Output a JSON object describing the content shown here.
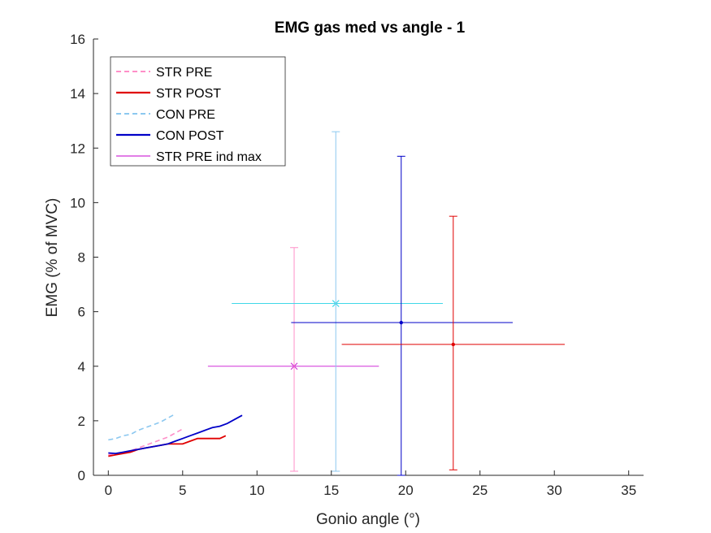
{
  "chart_data": {
    "type": "line",
    "title": "EMG gas med vs angle - 1",
    "xlabel": "Gonio angle (°)",
    "ylabel": "EMG (% of MVC)",
    "xlim": [
      -1,
      36
    ],
    "ylim": [
      0,
      16
    ],
    "xticks": [
      "0",
      "5",
      "10",
      "15",
      "20",
      "25",
      "30",
      "35"
    ],
    "yticks": [
      "0",
      "2",
      "4",
      "6",
      "8",
      "10",
      "12",
      "14",
      "16"
    ],
    "xtick_values": [
      0,
      5,
      10,
      15,
      20,
      25,
      30,
      35
    ],
    "ytick_values": [
      0,
      2,
      4,
      6,
      8,
      10,
      12,
      14,
      16
    ],
    "grid": false,
    "legend_position": "top-left",
    "legend": [
      "STR PRE",
      "STR POST",
      "CON PRE",
      "CON POST",
      "STR PRE ind max"
    ],
    "series": [
      {
        "name": "STR PRE",
        "style": "dashed",
        "color": "#ff8fc8",
        "x": [
          0,
          0.5,
          1,
          1.5,
          2,
          2.5,
          3,
          3.5,
          4,
          4.5,
          5
        ],
        "y": [
          0.75,
          0.8,
          0.85,
          0.9,
          1.0,
          1.1,
          1.2,
          1.3,
          1.4,
          1.55,
          1.7
        ]
      },
      {
        "name": "STR POST",
        "style": "solid",
        "color": "#e00000",
        "x": [
          0,
          0.5,
          1,
          1.5,
          2,
          2.5,
          3,
          3.5,
          4,
          4.5,
          5,
          5.5,
          6,
          6.5,
          7,
          7.5,
          7.9
        ],
        "y": [
          0.7,
          0.75,
          0.8,
          0.85,
          0.95,
          1.0,
          1.05,
          1.1,
          1.15,
          1.15,
          1.15,
          1.25,
          1.35,
          1.35,
          1.35,
          1.35,
          1.45
        ]
      },
      {
        "name": "CON PRE",
        "style": "dashed",
        "color": "#8cc8f0",
        "x": [
          0,
          0.5,
          1,
          1.5,
          2,
          2.5,
          3,
          3.5,
          4,
          4.5
        ],
        "y": [
          1.3,
          1.35,
          1.45,
          1.5,
          1.65,
          1.75,
          1.85,
          1.95,
          2.1,
          2.25
        ]
      },
      {
        "name": "CON POST",
        "style": "solid",
        "color": "#0000c8",
        "x": [
          0,
          0.5,
          1,
          1.5,
          2,
          2.5,
          3,
          3.5,
          4,
          4.5,
          5,
          5.5,
          6,
          6.5,
          7,
          7.5,
          8,
          8.5,
          9
        ],
        "y": [
          0.82,
          0.8,
          0.85,
          0.9,
          0.95,
          1.0,
          1.05,
          1.1,
          1.15,
          1.25,
          1.35,
          1.45,
          1.55,
          1.65,
          1.75,
          1.8,
          1.9,
          2.05,
          2.2
        ]
      }
    ],
    "error_points": [
      {
        "name": "STR PRE ind max",
        "color": "#d030d8",
        "marker": "x",
        "x": 12.5,
        "y": 4.0,
        "xerr": [
          6.7,
          18.2
        ],
        "yerr": null,
        "in_legend": true
      },
      {
        "name": "",
        "color": "#ff8fc8",
        "marker": "none",
        "x": 12.5,
        "y": 4.0,
        "xerr": null,
        "yerr": [
          0.15,
          8.35
        ],
        "in_legend": false
      },
      {
        "name": "",
        "color": "#40d8e8",
        "marker": "x",
        "x": 15.3,
        "y": 6.3,
        "xerr": [
          8.3,
          22.5
        ],
        "yerr": null,
        "in_legend": false
      },
      {
        "name": "",
        "color": "#8cc8f0",
        "marker": "none",
        "x": 15.3,
        "y": 6.3,
        "xerr": null,
        "yerr": [
          0.15,
          12.6
        ],
        "in_legend": false
      },
      {
        "name": "",
        "color": "#0000c8",
        "marker": "dot",
        "x": 19.7,
        "y": 5.6,
        "xerr": [
          12.3,
          27.2
        ],
        "yerr": [
          0.0,
          11.7
        ],
        "in_legend": false
      },
      {
        "name": "",
        "color": "#e00000",
        "marker": "dot",
        "x": 23.2,
        "y": 4.8,
        "xerr": [
          15.7,
          30.7
        ],
        "yerr": [
          0.2,
          9.5
        ],
        "in_legend": false
      }
    ]
  }
}
